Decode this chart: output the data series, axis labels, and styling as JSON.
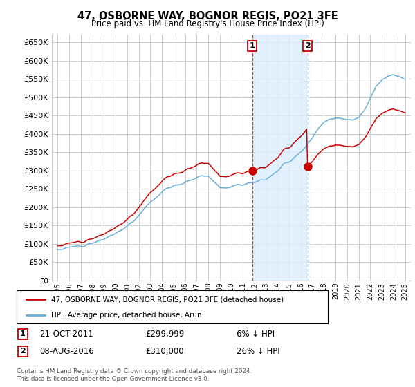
{
  "title": "47, OSBORNE WAY, BOGNOR REGIS, PO21 3FE",
  "subtitle": "Price paid vs. HM Land Registry's House Price Index (HPI)",
  "background_color": "#ffffff",
  "plot_bg_color": "#ffffff",
  "grid_color": "#cccccc",
  "hpi_line_color": "#6baed6",
  "price_color": "#cc0000",
  "shade_color": "#ddeeff",
  "annotation1_date": "21-OCT-2011",
  "annotation1_price": "£299,999",
  "annotation1_text": "6% ↓ HPI",
  "annotation2_date": "08-AUG-2016",
  "annotation2_price": "£310,000",
  "annotation2_text": "26% ↓ HPI",
  "legend1": "47, OSBORNE WAY, BOGNOR REGIS, PO21 3FE (detached house)",
  "legend2": "HPI: Average price, detached house, Arun",
  "footer": "Contains HM Land Registry data © Crown copyright and database right 2024.\nThis data is licensed under the Open Government Licence v3.0.",
  "ylim": [
    0,
    670000
  ],
  "yticks": [
    0,
    50000,
    100000,
    150000,
    200000,
    250000,
    300000,
    350000,
    400000,
    450000,
    500000,
    550000,
    600000,
    650000
  ],
  "sale1_x": 2011.8,
  "sale1_y": 299999,
  "sale2_x": 2016.58,
  "sale2_y": 310000,
  "vline1_x": 2011.8,
  "vline2_x": 2016.58,
  "xlim_left": 1994.5,
  "xlim_right": 2025.5
}
